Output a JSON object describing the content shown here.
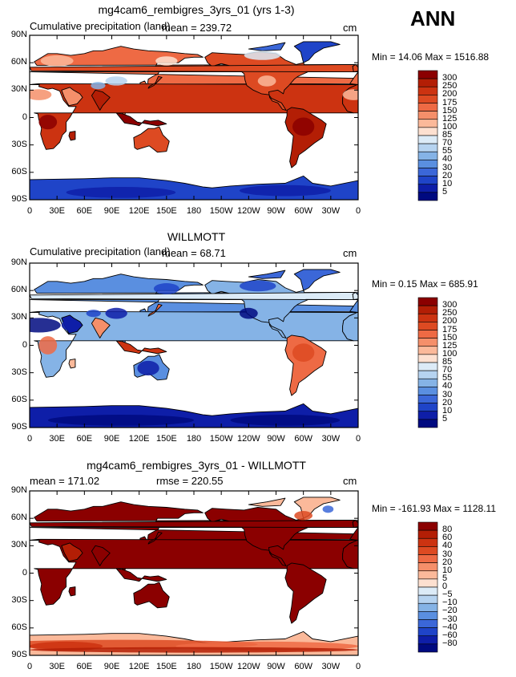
{
  "season": "ANN",
  "panels": [
    {
      "title": "mg4cam6_rembigres_3yrs_01 (yrs 1-3)",
      "left_text": "Cumulative precipitation (land)",
      "stat_text": "mean =  239.72",
      "units": "cm",
      "minmax": "Min =   14.06 Max = 1516.88",
      "colorbar": [
        "300",
        "250",
        "200",
        "175",
        "150",
        "125",
        "100",
        "85",
        "70",
        "55",
        "40",
        "30",
        "20",
        "10",
        "5"
      ],
      "scheme": "model"
    },
    {
      "title": "WILLMOTT",
      "left_text": "Cumulative precipitation (land)",
      "stat_text": "mean =   68.71",
      "units": "cm",
      "minmax": "Min =    0.15 Max = 685.91",
      "colorbar": [
        "300",
        "250",
        "200",
        "175",
        "150",
        "125",
        "100",
        "85",
        "70",
        "55",
        "40",
        "30",
        "20",
        "10",
        "5"
      ],
      "scheme": "obs"
    },
    {
      "title": "mg4cam6_rembigres_3yrs_01 - WILLMOTT",
      "left_text": "mean = 171.02",
      "stat_text": "rmse = 220.55",
      "units": "cm",
      "minmax": "Min = -161.93 Max = 1128.11",
      "colorbar": [
        "80",
        "60",
        "40",
        "30",
        "20",
        "10",
        "5",
        "0",
        "−5",
        "−10",
        "−20",
        "−30",
        "−40",
        "−60",
        "−80"
      ],
      "scheme": "diff"
    }
  ],
  "lat_ticks": [
    "90N",
    "60N",
    "30N",
    "0",
    "30S",
    "60S",
    "90S"
  ],
  "lon_ticks": [
    "0",
    "30E",
    "60E",
    "90E",
    "120E",
    "150E",
    "180",
    "150W",
    "120W",
    "90W",
    "60W",
    "30W",
    "0"
  ],
  "colors": {
    "bins": [
      "#8b0000",
      "#b31e05",
      "#cc3311",
      "#dd4a22",
      "#ee6a44",
      "#f58f6a",
      "#fbb99a",
      "#fde0d0",
      "#dcebf7",
      "#b6d3f0",
      "#85b3e6",
      "#5a8fe0",
      "#3b67d8",
      "#1f44c8",
      "#0e1ea8",
      "#000a80"
    ]
  }
}
